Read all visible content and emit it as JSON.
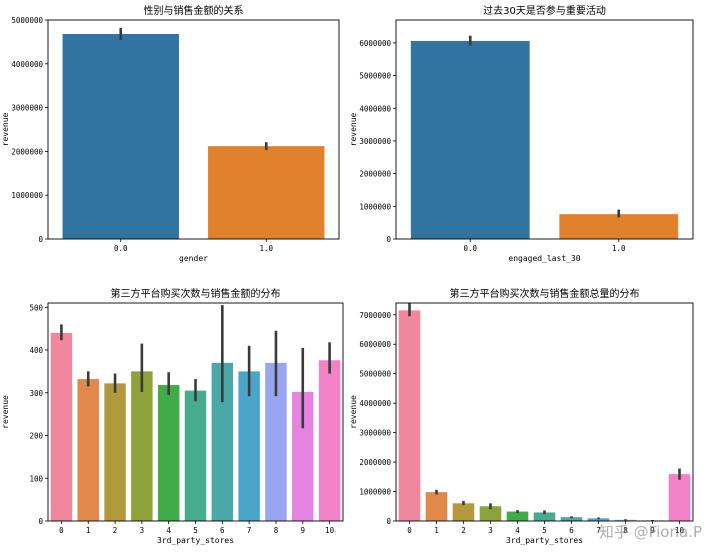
{
  "watermark": "知乎 @Fiona.P",
  "colors": {
    "blue": "#3274a1",
    "orange": "#e1812c",
    "palette11": [
      "#f0879c",
      "#e0894a",
      "#b29a3c",
      "#8ea23a",
      "#3fab49",
      "#47ab8f",
      "#4aa8a8",
      "#4ba5c8",
      "#9aa5f0",
      "#e584e0",
      "#f281c7"
    ]
  },
  "chart_data": [
    {
      "type": "bar",
      "title": "性别与销售金额的关系",
      "xlabel": "gender",
      "ylabel": "revenue",
      "categories": [
        "0.0",
        "1.0"
      ],
      "values": [
        4680000,
        2120000
      ],
      "error": [
        [
          4540000,
          4820000
        ],
        [
          2030000,
          2210000
        ]
      ],
      "ylim": [
        0,
        5000000
      ],
      "yticks": [
        0,
        1000000,
        2000000,
        3000000,
        4000000,
        5000000
      ],
      "ytick_labels": [
        "0",
        "1000000",
        "2000000",
        "3000000",
        "4000000",
        "5000000"
      ],
      "colors": [
        "#3274a1",
        "#e1812c"
      ]
    },
    {
      "type": "bar",
      "title": "过去30天是否参与重要活动",
      "xlabel": "engaged_last_30",
      "ylabel": "revenue",
      "categories": [
        "0.0",
        "1.0"
      ],
      "values": [
        6060000,
        760000
      ],
      "error": [
        [
          5920000,
          6220000
        ],
        [
          660000,
          900000
        ]
      ],
      "ylim": [
        0,
        6700000
      ],
      "yticks": [
        0,
        1000000,
        2000000,
        3000000,
        4000000,
        5000000,
        6000000
      ],
      "ytick_labels": [
        "0",
        "1000000",
        "2000000",
        "3000000",
        "4000000",
        "5000000",
        "6000000"
      ],
      "colors": [
        "#3274a1",
        "#e1812c"
      ]
    },
    {
      "type": "bar",
      "title": "第三方平台购买次数与销售金额的分布",
      "xlabel": "3rd_party_stores",
      "ylabel": "revenue",
      "categories": [
        "0",
        "1",
        "2",
        "3",
        "4",
        "5",
        "6",
        "7",
        "8",
        "9",
        "10"
      ],
      "values": [
        440,
        332,
        322,
        350,
        318,
        305,
        370,
        350,
        370,
        302,
        376
      ],
      "error": [
        [
          423,
          460
        ],
        [
          315,
          350
        ],
        [
          300,
          345
        ],
        [
          302,
          415
        ],
        [
          295,
          348
        ],
        [
          280,
          332
        ],
        [
          278,
          505
        ],
        [
          292,
          410
        ],
        [
          292,
          445
        ],
        [
          217,
          405
        ],
        [
          345,
          418
        ]
      ],
      "ylim": [
        0,
        510
      ],
      "yticks": [
        0,
        100,
        200,
        300,
        400,
        500
      ],
      "ytick_labels": [
        "0",
        "100",
        "200",
        "300",
        "400",
        "500"
      ],
      "palette": "palette11"
    },
    {
      "type": "bar",
      "title": "第三方平台购买次数与销售金额总量的分布",
      "xlabel": "3rd_party_stores",
      "ylabel": "revenue",
      "categories": [
        "0",
        "1",
        "2",
        "3",
        "4",
        "5",
        "6",
        "7",
        "8",
        "9",
        "10"
      ],
      "values": [
        7150000,
        980000,
        600000,
        500000,
        320000,
        290000,
        130000,
        90000,
        40000,
        20000,
        1590000
      ],
      "error": [
        [
          6950000,
          7420000
        ],
        [
          900000,
          1060000
        ],
        [
          540000,
          680000
        ],
        [
          400000,
          600000
        ],
        [
          270000,
          370000
        ],
        [
          230000,
          360000
        ],
        [
          100000,
          160000
        ],
        [
          60000,
          120000
        ],
        [
          20000,
          60000
        ],
        [
          5000,
          35000
        ],
        [
          1400000,
          1780000
        ]
      ],
      "ylim": [
        0,
        7400000
      ],
      "yticks": [
        0,
        1000000,
        2000000,
        3000000,
        4000000,
        5000000,
        6000000,
        7000000
      ],
      "ytick_labels": [
        "0",
        "1000000",
        "2000000",
        "3000000",
        "4000000",
        "5000000",
        "6000000",
        "7000000"
      ],
      "palette": "palette11"
    }
  ]
}
